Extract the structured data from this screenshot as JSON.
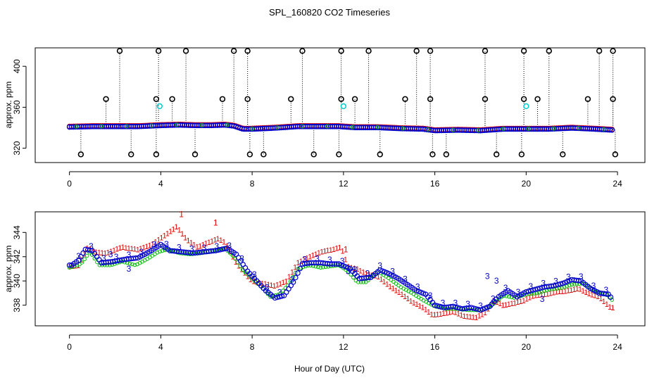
{
  "chart_data": [
    {
      "type": "scatter",
      "title": "SPL_160820  CO2 Timeseries",
      "xlabel": "",
      "ylabel": "approx. ppm",
      "xlim": [
        -1.5,
        25.2
      ],
      "ylim": [
        306,
        418
      ],
      "xticks": [
        "0",
        "4",
        "8",
        "12",
        "16",
        "20",
        "24"
      ],
      "xtick_values": [
        0,
        4,
        8,
        12,
        16,
        20,
        24
      ],
      "yticks": [
        "320",
        "360",
        "400"
      ],
      "ytick_values": [
        320,
        360,
        400
      ],
      "colors": {
        "red": "#dd0000",
        "blue": "#0000cc",
        "green": "#00bb00",
        "cyan": "#00cccc",
        "black": "#000000"
      },
      "baseline": {
        "x": [
          0,
          1,
          2,
          3,
          4,
          4.8,
          5.5,
          6.2,
          6.8,
          7.2,
          7.6,
          8,
          9,
          10,
          11,
          11.8,
          12.5,
          13.5,
          14.5,
          15.5,
          16,
          17,
          18,
          19,
          20,
          21,
          22,
          23,
          23.8
        ],
        "y": [
          341,
          341.5,
          341.5,
          341.5,
          342.5,
          343,
          342.5,
          342.5,
          343,
          342,
          339,
          339,
          340,
          341.5,
          341.5,
          341.5,
          340.5,
          340.5,
          339.5,
          339,
          337.5,
          338,
          337.5,
          339,
          339,
          339,
          340,
          339,
          338
        ]
      },
      "outliers_high": {
        "x": [
          2.2,
          3.9,
          5.1,
          7.2,
          7.8,
          10.2,
          11.9,
          13.1,
          15.2,
          15.8,
          18.2,
          19.9,
          21.0,
          23.2,
          23.8
        ],
        "y": [
          415,
          415,
          415,
          415,
          415,
          415,
          415,
          415,
          415,
          415,
          415,
          415,
          415,
          415,
          415
        ]
      },
      "outliers_mid": {
        "x": [
          1.6,
          3.8,
          4.5,
          6.7,
          7.8,
          9.7,
          11.9,
          12.5,
          14.7,
          15.8,
          18.2,
          19.9,
          20.5,
          22.7,
          23.8
        ],
        "y": [
          368,
          368,
          368,
          368,
          368,
          368,
          368,
          368,
          368,
          368,
          368,
          368,
          368,
          368,
          368
        ]
      },
      "outliers_low": {
        "x": [
          0.5,
          2.7,
          3.8,
          5.5,
          7.9,
          8.5,
          10.7,
          11.8,
          13.6,
          15.9,
          16.5,
          18.7,
          19.8,
          21.6,
          23.9
        ],
        "y": [
          314,
          314,
          314,
          314,
          314,
          314,
          314,
          314,
          314,
          314,
          314,
          314,
          314,
          314,
          314
        ]
      },
      "cyan_points": {
        "x": [
          3.95,
          12.0,
          20.0
        ],
        "y": [
          361,
          361,
          361
        ]
      }
    },
    {
      "type": "scatter",
      "title": "",
      "xlabel": "Hour of Day (UTC)",
      "ylabel": "approx. ppm",
      "xlim": [
        -1.5,
        25.2
      ],
      "ylim": [
        336.3,
        345.7
      ],
      "xticks": [
        "0",
        "4",
        "8",
        "12",
        "16",
        "20",
        "24"
      ],
      "xtick_values": [
        0,
        4,
        8,
        12,
        16,
        20,
        24
      ],
      "yticks": [
        "338",
        "340",
        "342",
        "344"
      ],
      "ytick_values": [
        338,
        340,
        342,
        344
      ],
      "series": [
        {
          "name": "1",
          "color": "#dd0000",
          "x": [
            0,
            0.4,
            0.8,
            1.1,
            1.6,
            2.3,
            3.0,
            3.6,
            4.2,
            4.7,
            5.1,
            5.6,
            6.1,
            6.5,
            6.8,
            7.3,
            7.7,
            8.0,
            8.5,
            9.0,
            9.5,
            10.0,
            10.5,
            11.0,
            11.5,
            11.9,
            12.2,
            12.6,
            13.0,
            13.5,
            14.0,
            14.5,
            15.0,
            15.5,
            15.9,
            16.3,
            16.8,
            17.3,
            17.8,
            18.2,
            18.6,
            19.0,
            19.5,
            19.9,
            20.3,
            20.8,
            21.3,
            21.8,
            22.3,
            22.7,
            23.2,
            23.7
          ],
          "y": [
            341.2,
            341.3,
            342.8,
            342.4,
            342.3,
            342.8,
            342.6,
            343.0,
            343.8,
            344.5,
            343.5,
            342.8,
            343.2,
            343.5,
            343.2,
            341.5,
            340.6,
            340.0,
            339.8,
            339.6,
            340.0,
            341.5,
            342.0,
            342.4,
            342.6,
            342.8,
            341.2,
            341.0,
            340.6,
            340.4,
            339.6,
            339.0,
            338.3,
            337.8,
            337.2,
            337.3,
            337.5,
            337.1,
            337.0,
            337.4,
            338.4,
            338.0,
            338.2,
            338.4,
            338.8,
            338.9,
            339.1,
            339.2,
            339.4,
            339.0,
            338.7,
            337.8
          ]
        },
        {
          "name": "2",
          "color": "#00bb00",
          "x": [
            0,
            0.5,
            0.9,
            1.3,
            1.8,
            2.3,
            2.9,
            3.4,
            3.9,
            4.3,
            4.8,
            5.3,
            5.8,
            6.3,
            6.8,
            7.2,
            7.6,
            8.0,
            8.4,
            8.8,
            9.2,
            9.6,
            10.0,
            10.5,
            11.0,
            11.4,
            11.8,
            12.2,
            12.6,
            13.0,
            13.5,
            14.0,
            14.5,
            15.0,
            15.5,
            16.0,
            16.5,
            17.0,
            17.5,
            18.0,
            18.5,
            19.0,
            19.5,
            20.0,
            20.5,
            21.0,
            21.5,
            22.0,
            22.5,
            23.0,
            23.5,
            23.9
          ],
          "y": [
            341.1,
            341.4,
            342.4,
            341.3,
            341.3,
            341.6,
            341.3,
            341.8,
            342.4,
            342.6,
            342.3,
            342.2,
            342.3,
            342.5,
            342.7,
            342.0,
            340.9,
            340.2,
            339.5,
            338.7,
            338.9,
            339.7,
            341.0,
            341.3,
            341.1,
            341.2,
            341.3,
            340.8,
            339.9,
            339.9,
            340.8,
            340.2,
            339.5,
            339.0,
            338.4,
            337.9,
            337.7,
            337.7,
            337.6,
            337.6,
            338.0,
            338.8,
            338.6,
            338.9,
            339.0,
            339.3,
            339.4,
            339.7,
            339.8,
            339.2,
            338.9,
            338.2
          ]
        },
        {
          "name": "3",
          "color": "#0000cc",
          "x": [
            0.1,
            0.4,
            0.7,
            1.0,
            1.4,
            1.9,
            2.5,
            3.0,
            3.5,
            4.0,
            4.4,
            4.9,
            5.4,
            5.9,
            6.4,
            6.9,
            7.3,
            7.8,
            8.2,
            8.6,
            9.0,
            9.4,
            9.8,
            10.2,
            10.6,
            11.0,
            11.4,
            11.8,
            12.3,
            12.7,
            13.2,
            13.6,
            14.0,
            14.4,
            14.8,
            15.2,
            15.6,
            16.0,
            16.4,
            16.8,
            17.2,
            17.6,
            18.0,
            18.4,
            18.8,
            19.2,
            19.6,
            20.0,
            20.4,
            20.8,
            21.2,
            21.6,
            22.0,
            22.4,
            22.8,
            23.2,
            23.6,
            23.9
          ],
          "y": [
            341.3,
            341.7,
            342.6,
            342.5,
            341.5,
            341.6,
            341.8,
            341.9,
            342.4,
            343.0,
            342.5,
            342.4,
            342.3,
            342.4,
            342.5,
            342.7,
            342.2,
            340.8,
            340.0,
            339.2,
            338.6,
            338.8,
            339.9,
            341.4,
            341.5,
            341.5,
            341.4,
            341.4,
            341.0,
            340.2,
            340.3,
            340.9,
            340.6,
            340.2,
            339.7,
            339.2,
            338.9,
            338.0,
            337.8,
            337.9,
            337.7,
            337.8,
            337.6,
            337.9,
            338.7,
            339.2,
            338.7,
            339.1,
            339.3,
            339.5,
            339.6,
            339.8,
            340.1,
            340.0,
            339.4,
            339.0,
            338.9,
            338.2
          ]
        }
      ],
      "extra_labels": [
        {
          "text": "3",
          "x": 1.8,
          "y": 342.2
        },
        {
          "text": "3",
          "x": 2.6,
          "y": 341.0
        },
        {
          "text": "3",
          "x": 12.2,
          "y": 340.8
        },
        {
          "text": "3",
          "x": 18.3,
          "y": 340.4
        },
        {
          "text": "3",
          "x": 18.7,
          "y": 340.0
        },
        {
          "text": "3",
          "x": 20.7,
          "y": 338.5
        },
        {
          "text": "1",
          "x": 4.9,
          "y": 345.5
        },
        {
          "text": "1",
          "x": 6.4,
          "y": 344.8
        },
        {
          "text": "1",
          "x": 12.1,
          "y": 342.6
        }
      ]
    }
  ]
}
